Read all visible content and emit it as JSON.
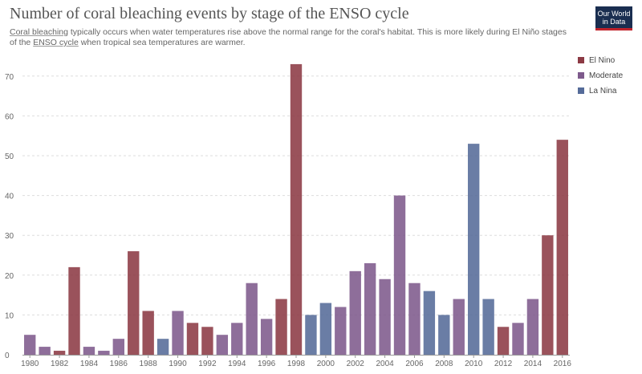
{
  "header": {
    "title": "Number of coral bleaching events by stage of the ENSO cycle",
    "subtitle_link1": "Coral bleaching",
    "subtitle_part1": " typically occurs when water temperatures rise above the normal range for the coral's habitat. This is more likely during El Niño stages of the ",
    "subtitle_link2": "ENSO cycle",
    "subtitle_part2": " when tropical sea temperatures are warmer.",
    "logo_line1": "Our World",
    "logo_line2": "in Data"
  },
  "legend": [
    {
      "label": "El Nino",
      "color": "#8c3a44"
    },
    {
      "label": "Moderate",
      "color": "#7e5a8c"
    },
    {
      "label": "La Nina",
      "color": "#556b99"
    }
  ],
  "chart_data": {
    "type": "bar",
    "title": "Number of coral bleaching events by stage of the ENSO cycle",
    "x": [
      1980,
      1981,
      1982,
      1983,
      1984,
      1985,
      1986,
      1987,
      1988,
      1989,
      1990,
      1991,
      1992,
      1993,
      1994,
      1995,
      1996,
      1997,
      1998,
      1999,
      2000,
      2001,
      2002,
      2003,
      2004,
      2005,
      2006,
      2007,
      2008,
      2009,
      2010,
      2011,
      2012,
      2013,
      2014,
      2015,
      2016
    ],
    "values": [
      5,
      2,
      1,
      22,
      2,
      1,
      4,
      26,
      11,
      4,
      11,
      8,
      7,
      5,
      8,
      18,
      9,
      14,
      73,
      10,
      13,
      12,
      21,
      23,
      19,
      40,
      18,
      16,
      10,
      14,
      53,
      14,
      7,
      8,
      14,
      30,
      54
    ],
    "stage": [
      "Moderate",
      "Moderate",
      "El Nino",
      "El Nino",
      "Moderate",
      "Moderate",
      "Moderate",
      "El Nino",
      "El Nino",
      "La Nina",
      "Moderate",
      "El Nino",
      "El Nino",
      "Moderate",
      "Moderate",
      "Moderate",
      "Moderate",
      "El Nino",
      "El Nino",
      "La Nina",
      "La Nina",
      "Moderate",
      "Moderate",
      "Moderate",
      "Moderate",
      "Moderate",
      "Moderate",
      "La Nina",
      "La Nina",
      "Moderate",
      "La Nina",
      "La Nina",
      "El Nino",
      "Moderate",
      "Moderate",
      "El Nino",
      "El Nino"
    ],
    "x_tick_labels": [
      "1980",
      "1982",
      "1984",
      "1986",
      "1988",
      "1990",
      "1992",
      "1994",
      "1996",
      "1998",
      "2000",
      "2002",
      "2004",
      "2006",
      "2008",
      "2010",
      "2012",
      "2014",
      "2016"
    ],
    "y_ticks": [
      0,
      10,
      20,
      30,
      40,
      50,
      60,
      70
    ],
    "ylim": [
      0,
      75
    ],
    "xlabel": "",
    "ylabel": "",
    "grid": "horizontal dashed",
    "legend_position": "right"
  }
}
